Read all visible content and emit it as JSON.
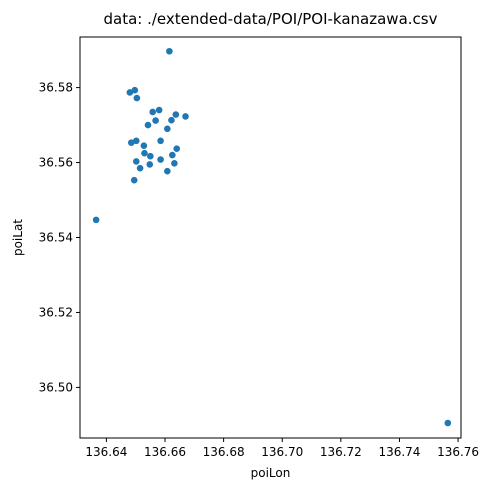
{
  "chart_data": {
    "type": "scatter",
    "title": "data: ./extended-data/POI/POI-kanazawa.csv",
    "xlabel": "poiLon",
    "ylabel": "poiLat",
    "xlim": [
      136.631,
      136.761
    ],
    "ylim": [
      36.4865,
      36.5935
    ],
    "x_ticks": [
      136.64,
      136.66,
      136.68,
      136.7,
      136.72,
      136.74,
      136.76
    ],
    "x_tick_labels": [
      "136.64",
      "136.66",
      "136.68",
      "136.70",
      "136.72",
      "136.74",
      "136.76"
    ],
    "y_ticks": [
      36.5,
      36.52,
      36.54,
      36.56,
      36.58
    ],
    "y_tick_labels": [
      "36.50",
      "36.52",
      "36.54",
      "36.56",
      "36.58"
    ],
    "grid": false,
    "marker_color": "#1f77b4",
    "points": [
      {
        "x": 136.6615,
        "y": 36.5897
      },
      {
        "x": 136.648,
        "y": 36.5787
      },
      {
        "x": 136.6497,
        "y": 36.5793
      },
      {
        "x": 136.6504,
        "y": 36.5772
      },
      {
        "x": 136.6558,
        "y": 36.5735
      },
      {
        "x": 136.658,
        "y": 36.574
      },
      {
        "x": 136.6637,
        "y": 36.5728
      },
      {
        "x": 136.667,
        "y": 36.5723
      },
      {
        "x": 136.6622,
        "y": 36.5713
      },
      {
        "x": 136.6568,
        "y": 36.5712
      },
      {
        "x": 136.6542,
        "y": 36.57
      },
      {
        "x": 136.6608,
        "y": 36.569
      },
      {
        "x": 136.6485,
        "y": 36.5653
      },
      {
        "x": 136.6502,
        "y": 36.5658
      },
      {
        "x": 136.6585,
        "y": 36.5658
      },
      {
        "x": 136.6528,
        "y": 36.5645
      },
      {
        "x": 136.664,
        "y": 36.5637
      },
      {
        "x": 136.653,
        "y": 36.5625
      },
      {
        "x": 136.6625,
        "y": 36.562
      },
      {
        "x": 136.655,
        "y": 36.5617
      },
      {
        "x": 136.6502,
        "y": 36.5603
      },
      {
        "x": 136.6585,
        "y": 36.5608
      },
      {
        "x": 136.6548,
        "y": 36.5595
      },
      {
        "x": 136.6632,
        "y": 36.5598
      },
      {
        "x": 136.6515,
        "y": 36.5585
      },
      {
        "x": 136.6608,
        "y": 36.5577
      },
      {
        "x": 136.6495,
        "y": 36.5553
      },
      {
        "x": 136.6365,
        "y": 36.5447
      },
      {
        "x": 136.7565,
        "y": 36.4905
      }
    ]
  }
}
